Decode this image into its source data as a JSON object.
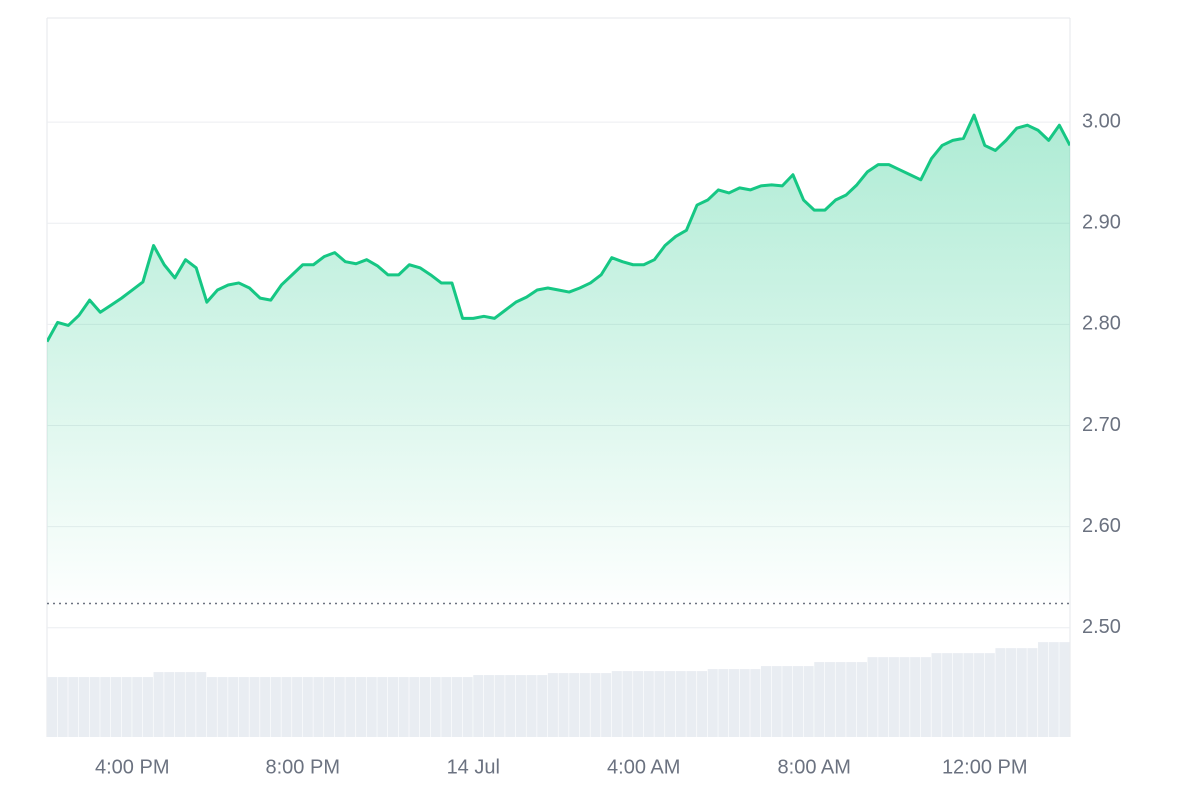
{
  "chart_data": {
    "type": "line",
    "x": [
      14,
      14.25,
      14.5,
      14.75,
      15,
      15.25,
      15.5,
      15.75,
      16,
      16.25,
      16.5,
      16.75,
      17,
      17.25,
      17.5,
      17.75,
      18,
      18.25,
      18.5,
      18.75,
      19,
      19.25,
      19.5,
      19.75,
      20,
      20.25,
      20.5,
      20.75,
      21,
      21.25,
      21.5,
      21.75,
      22,
      22.25,
      22.5,
      22.75,
      23,
      23.25,
      23.5,
      23.75,
      24,
      24.25,
      24.5,
      24.75,
      25,
      25.25,
      25.5,
      25.75,
      26,
      26.25,
      26.5,
      26.75,
      27,
      27.25,
      27.5,
      27.75,
      28,
      28.25,
      28.5,
      28.75,
      29,
      29.25,
      29.5,
      29.75,
      30,
      30.25,
      30.5,
      30.75,
      31,
      31.25,
      31.5,
      31.75,
      32,
      32.25,
      32.5,
      32.75,
      33,
      33.25,
      33.5,
      33.75,
      34,
      34.25,
      34.5,
      34.75,
      35,
      35.25,
      35.5,
      35.75,
      36,
      36.25,
      36.5,
      36.75,
      37,
      37.25,
      37.5,
      37.75,
      38
    ],
    "series": [
      {
        "color": "#16c784",
        "values": [
          2.783,
          2.802,
          2.799,
          2.809,
          2.824,
          2.812,
          2.819,
          2.826,
          2.834,
          2.842,
          2.878,
          2.859,
          2.846,
          2.864,
          2.856,
          2.822,
          2.834,
          2.839,
          2.841,
          2.836,
          2.826,
          2.824,
          2.839,
          2.849,
          2.859,
          2.859,
          2.867,
          2.871,
          2.862,
          2.86,
          2.864,
          2.858,
          2.849,
          2.849,
          2.859,
          2.856,
          2.849,
          2.841,
          2.841,
          2.806,
          2.806,
          2.808,
          2.806,
          2.814,
          2.822,
          2.827,
          2.834,
          2.836,
          2.834,
          2.832,
          2.836,
          2.841,
          2.849,
          2.866,
          2.862,
          2.859,
          2.859,
          2.864,
          2.878,
          2.887,
          2.893,
          2.918,
          2.923,
          2.933,
          2.93,
          2.935,
          2.933,
          2.937,
          2.938,
          2.937,
          2.948,
          2.923,
          2.913,
          2.913,
          2.923,
          2.928,
          2.938,
          2.951,
          2.958,
          2.958,
          2.953,
          2.948,
          2.943,
          2.964,
          2.977,
          2.982,
          2.984,
          3.007,
          2.977,
          2.972,
          2.982,
          2.994,
          2.997,
          2.992,
          2.982,
          2.997,
          2.977
        ]
      },
      {
        "color": "#e9edf2",
        "axis": "y2",
        "values": [
          60,
          60,
          60,
          60,
          60,
          60,
          60,
          60,
          60,
          60,
          65,
          65,
          65,
          65,
          65,
          60,
          60,
          60,
          60,
          60,
          60,
          60,
          60,
          60,
          60,
          60,
          60,
          60,
          60,
          60,
          60,
          60,
          60,
          60,
          60,
          60,
          60,
          60,
          60,
          60,
          62,
          62,
          62,
          62,
          62,
          62,
          62,
          64,
          64,
          64,
          64,
          64,
          64,
          66,
          66,
          66,
          66,
          66,
          66,
          66,
          66,
          66,
          68,
          68,
          68,
          68,
          68,
          71,
          71,
          71,
          71,
          71,
          75,
          75,
          75,
          75,
          75,
          80,
          80,
          80,
          80,
          80,
          80,
          84,
          84,
          84,
          84,
          84,
          84,
          89,
          89,
          89,
          89,
          95,
          95,
          95,
          95
        ]
      }
    ],
    "baseline": 2.524,
    "xlim": [
      14,
      38
    ],
    "xticks": [
      {
        "value": 16,
        "label": "4:00 PM"
      },
      {
        "value": 20,
        "label": "8:00 PM"
      },
      {
        "value": 24,
        "label": "14 Jul"
      },
      {
        "value": 28,
        "label": "4:00 AM"
      },
      {
        "value": 32,
        "label": "8:00 AM"
      },
      {
        "value": 36,
        "label": "12:00 PM"
      }
    ],
    "ylim": [
      2.392,
      3.103
    ],
    "yticks": [
      {
        "value": 2.5,
        "label": "2.50"
      },
      {
        "value": 2.6,
        "label": "2.60"
      },
      {
        "value": 2.7,
        "label": "2.70"
      },
      {
        "value": 2.8,
        "label": "2.80"
      },
      {
        "value": 2.9,
        "label": "2.90"
      },
      {
        "value": 3,
        "label": "3.00"
      }
    ],
    "y2lim": [
      0,
      720
    ],
    "grid": true
  }
}
